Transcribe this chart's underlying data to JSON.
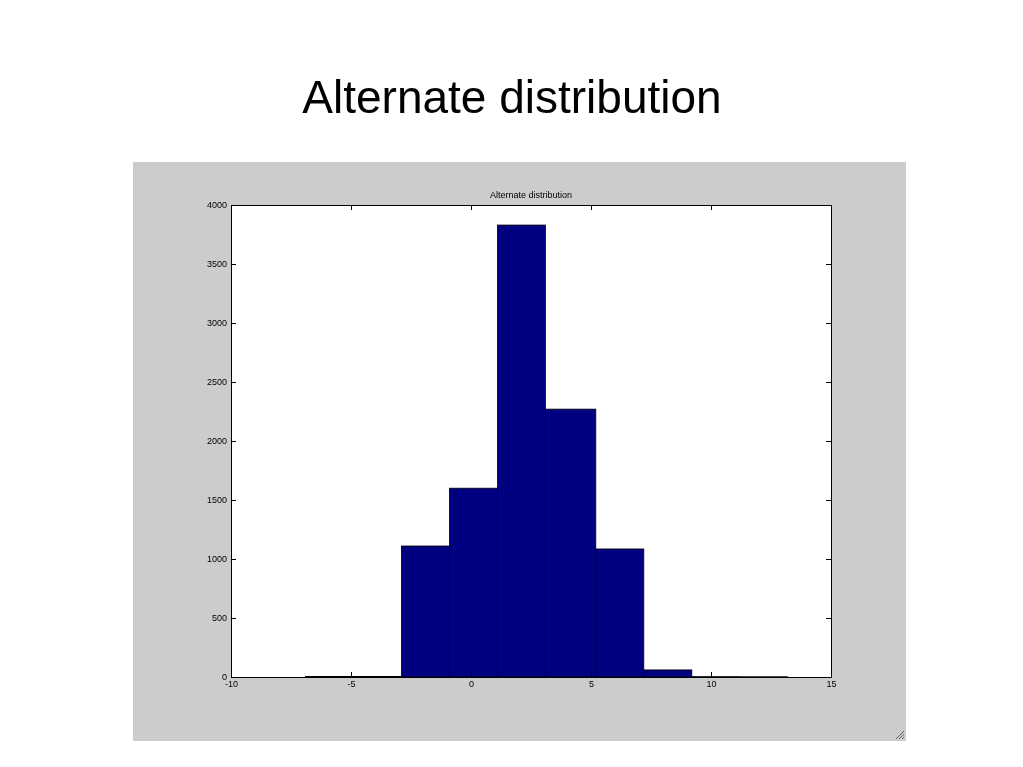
{
  "chart_data": {
    "type": "histogram",
    "title": "Alternate distribution",
    "subtitle": "Alternate distribution",
    "bins": [
      -6.9,
      -4.9,
      -2.9,
      -0.9,
      1.1,
      3.1,
      5.2,
      7.2,
      9.2,
      11.2,
      13.2
    ],
    "values": [
      5,
      5,
      1110,
      1600,
      3830,
      2270,
      1085,
      60,
      3,
      2
    ],
    "color": "#000080",
    "xlim": [
      -10,
      15
    ],
    "xticks": [
      -10,
      -5,
      0,
      5,
      10,
      15
    ],
    "ylim": [
      0,
      4000
    ],
    "yticks": [
      0,
      500,
      1000,
      1500,
      2000,
      2500,
      3000,
      3500,
      4000
    ],
    "grid": false
  }
}
